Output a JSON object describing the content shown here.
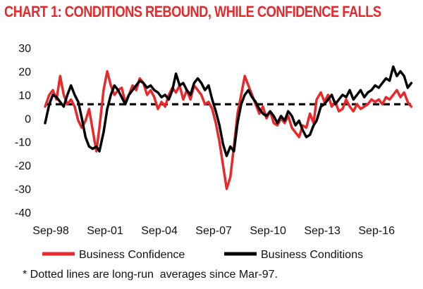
{
  "colors": {
    "confidence": "#e8282a",
    "conditions": "#000000",
    "title": "#e8282a"
  },
  "chart_data": {
    "type": "line",
    "title": "CHART 1: CONDITIONS REBOUND, WHILE CONFIDENCE FALLS",
    "xlabel": "",
    "ylabel": "",
    "ylim": [
      -40,
      30
    ],
    "yticks": [
      30,
      20,
      10,
      0,
      -10,
      -20,
      -30,
      -40
    ],
    "xlim": [
      1998.67,
      2019.0
    ],
    "xticks": [
      {
        "label": "Sep-98",
        "t": 1998.67
      },
      {
        "label": "Sep-01",
        "t": 2001.67
      },
      {
        "label": "Sep-04",
        "t": 2004.67
      },
      {
        "label": "Sep-07",
        "t": 2007.67
      },
      {
        "label": "Sep-10",
        "t": 2010.67
      },
      {
        "label": "Sep-13",
        "t": 2013.67
      },
      {
        "label": "Sep-16",
        "t": 2016.67
      }
    ],
    "series": [
      {
        "name": "Business Confidence",
        "color": "#e8282a",
        "longrun_average": 6,
        "points": [
          [
            1998.67,
            5
          ],
          [
            1998.9,
            10
          ],
          [
            1999.1,
            12
          ],
          [
            1999.3,
            8
          ],
          [
            1999.5,
            18
          ],
          [
            1999.7,
            10
          ],
          [
            1999.9,
            6
          ],
          [
            2000.1,
            8
          ],
          [
            2000.3,
            5
          ],
          [
            2000.5,
            -1
          ],
          [
            2000.7,
            -4
          ],
          [
            2000.9,
            -1
          ],
          [
            2001.1,
            4
          ],
          [
            2001.3,
            -5
          ],
          [
            2001.5,
            -14
          ],
          [
            2001.67,
            -4
          ],
          [
            2001.9,
            12
          ],
          [
            2002.1,
            20
          ],
          [
            2002.3,
            14
          ],
          [
            2002.5,
            10
          ],
          [
            2002.7,
            12
          ],
          [
            2002.9,
            13
          ],
          [
            2003.1,
            7
          ],
          [
            2003.3,
            10
          ],
          [
            2003.5,
            14
          ],
          [
            2003.7,
            12
          ],
          [
            2003.9,
            17
          ],
          [
            2004.1,
            15
          ],
          [
            2004.3,
            10
          ],
          [
            2004.5,
            12
          ],
          [
            2004.7,
            9
          ],
          [
            2004.9,
            4
          ],
          [
            2005.1,
            7
          ],
          [
            2005.3,
            5
          ],
          [
            2005.5,
            10
          ],
          [
            2005.7,
            13
          ],
          [
            2005.9,
            11
          ],
          [
            2006.1,
            14
          ],
          [
            2006.3,
            8
          ],
          [
            2006.5,
            12
          ],
          [
            2006.7,
            8
          ],
          [
            2006.9,
            14
          ],
          [
            2007.1,
            12
          ],
          [
            2007.3,
            10
          ],
          [
            2007.5,
            6
          ],
          [
            2007.7,
            7
          ],
          [
            2007.9,
            4
          ],
          [
            2008.1,
            -2
          ],
          [
            2008.3,
            -10
          ],
          [
            2008.5,
            -20
          ],
          [
            2008.7,
            -30
          ],
          [
            2008.9,
            -25
          ],
          [
            2009.1,
            -12
          ],
          [
            2009.3,
            2
          ],
          [
            2009.5,
            10
          ],
          [
            2009.7,
            18
          ],
          [
            2009.9,
            14
          ],
          [
            2010.1,
            10
          ],
          [
            2010.3,
            6
          ],
          [
            2010.5,
            2
          ],
          [
            2010.7,
            5
          ],
          [
            2010.9,
            0
          ],
          [
            2011.1,
            3
          ],
          [
            2011.3,
            -2
          ],
          [
            2011.5,
            -3
          ],
          [
            2011.7,
            0
          ],
          [
            2011.9,
            -2
          ],
          [
            2012.1,
            1
          ],
          [
            2012.3,
            -4
          ],
          [
            2012.5,
            -6
          ],
          [
            2012.7,
            -8
          ],
          [
            2012.9,
            -3
          ],
          [
            2013.1,
            -4
          ],
          [
            2013.3,
            2
          ],
          [
            2013.5,
            -2
          ],
          [
            2013.67,
            8
          ],
          [
            2013.9,
            11
          ],
          [
            2014.1,
            7
          ],
          [
            2014.3,
            10
          ],
          [
            2014.5,
            5
          ],
          [
            2014.7,
            7
          ],
          [
            2014.9,
            3
          ],
          [
            2015.1,
            4
          ],
          [
            2015.3,
            8
          ],
          [
            2015.5,
            5
          ],
          [
            2015.7,
            3
          ],
          [
            2015.9,
            6
          ],
          [
            2016.1,
            4
          ],
          [
            2016.3,
            5
          ],
          [
            2016.5,
            6
          ],
          [
            2016.7,
            8
          ],
          [
            2016.9,
            7
          ],
          [
            2017.1,
            8
          ],
          [
            2017.3,
            6
          ],
          [
            2017.5,
            9
          ],
          [
            2017.7,
            8
          ],
          [
            2017.9,
            10
          ],
          [
            2018.1,
            12
          ],
          [
            2018.3,
            9
          ],
          [
            2018.5,
            11
          ],
          [
            2018.7,
            7
          ],
          [
            2018.9,
            5
          ]
        ]
      },
      {
        "name": "Business Conditions",
        "color": "#000000",
        "longrun_average": 6,
        "points": [
          [
            1998.67,
            -2
          ],
          [
            1998.9,
            6
          ],
          [
            1999.1,
            10
          ],
          [
            1999.3,
            9
          ],
          [
            1999.5,
            7
          ],
          [
            1999.7,
            5
          ],
          [
            1999.9,
            10
          ],
          [
            2000.1,
            14
          ],
          [
            2000.3,
            10
          ],
          [
            2000.5,
            7
          ],
          [
            2000.7,
            0
          ],
          [
            2000.9,
            -8
          ],
          [
            2001.1,
            -12
          ],
          [
            2001.3,
            -13
          ],
          [
            2001.5,
            -12
          ],
          [
            2001.67,
            -14
          ],
          [
            2001.9,
            -6
          ],
          [
            2002.1,
            4
          ],
          [
            2002.3,
            10
          ],
          [
            2002.5,
            14
          ],
          [
            2002.7,
            12
          ],
          [
            2002.9,
            9
          ],
          [
            2003.1,
            6
          ],
          [
            2003.3,
            10
          ],
          [
            2003.5,
            12
          ],
          [
            2003.7,
            14
          ],
          [
            2003.9,
            16
          ],
          [
            2004.1,
            15
          ],
          [
            2004.3,
            13
          ],
          [
            2004.5,
            14
          ],
          [
            2004.7,
            12
          ],
          [
            2004.9,
            11
          ],
          [
            2005.1,
            9
          ],
          [
            2005.3,
            10
          ],
          [
            2005.5,
            8
          ],
          [
            2005.7,
            12
          ],
          [
            2005.9,
            19
          ],
          [
            2006.1,
            14
          ],
          [
            2006.3,
            15
          ],
          [
            2006.5,
            12
          ],
          [
            2006.7,
            10
          ],
          [
            2006.9,
            15
          ],
          [
            2007.1,
            17
          ],
          [
            2007.3,
            15
          ],
          [
            2007.5,
            12
          ],
          [
            2007.7,
            14
          ],
          [
            2007.9,
            8
          ],
          [
            2008.1,
            3
          ],
          [
            2008.3,
            -3
          ],
          [
            2008.5,
            -11
          ],
          [
            2008.7,
            -16
          ],
          [
            2008.9,
            -12
          ],
          [
            2009.1,
            -14
          ],
          [
            2009.3,
            -2
          ],
          [
            2009.5,
            6
          ],
          [
            2009.7,
            10
          ],
          [
            2009.9,
            12
          ],
          [
            2010.1,
            9
          ],
          [
            2010.3,
            7
          ],
          [
            2010.5,
            4
          ],
          [
            2010.7,
            2
          ],
          [
            2010.9,
            1
          ],
          [
            2011.1,
            3
          ],
          [
            2011.3,
            1
          ],
          [
            2011.5,
            -2
          ],
          [
            2011.7,
            1
          ],
          [
            2011.9,
            -1
          ],
          [
            2012.1,
            3
          ],
          [
            2012.3,
            1
          ],
          [
            2012.5,
            -3
          ],
          [
            2012.7,
            -1
          ],
          [
            2012.9,
            -5
          ],
          [
            2013.1,
            -8
          ],
          [
            2013.3,
            -7
          ],
          [
            2013.5,
            -3
          ],
          [
            2013.67,
            -1
          ],
          [
            2013.9,
            5
          ],
          [
            2014.1,
            6
          ],
          [
            2014.3,
            8
          ],
          [
            2014.5,
            10
          ],
          [
            2014.7,
            6
          ],
          [
            2014.9,
            8
          ],
          [
            2015.1,
            10
          ],
          [
            2015.3,
            9
          ],
          [
            2015.5,
            12
          ],
          [
            2015.7,
            8
          ],
          [
            2015.9,
            10
          ],
          [
            2016.1,
            12
          ],
          [
            2016.3,
            9
          ],
          [
            2016.5,
            11
          ],
          [
            2016.7,
            12
          ],
          [
            2016.9,
            14
          ],
          [
            2017.1,
            13
          ],
          [
            2017.3,
            15
          ],
          [
            2017.5,
            17
          ],
          [
            2017.7,
            16
          ],
          [
            2017.9,
            22
          ],
          [
            2018.1,
            18
          ],
          [
            2018.3,
            20
          ],
          [
            2018.5,
            18
          ],
          [
            2018.7,
            13
          ],
          [
            2018.9,
            15
          ]
        ]
      }
    ],
    "legend": [
      {
        "label": "Business Confidence",
        "color": "#e8282a"
      },
      {
        "label": "Business Conditions",
        "color": "#000000"
      }
    ],
    "legend_position": "bottom",
    "footnote": "* Dotted lines are long-run  averages since Mar-97."
  }
}
